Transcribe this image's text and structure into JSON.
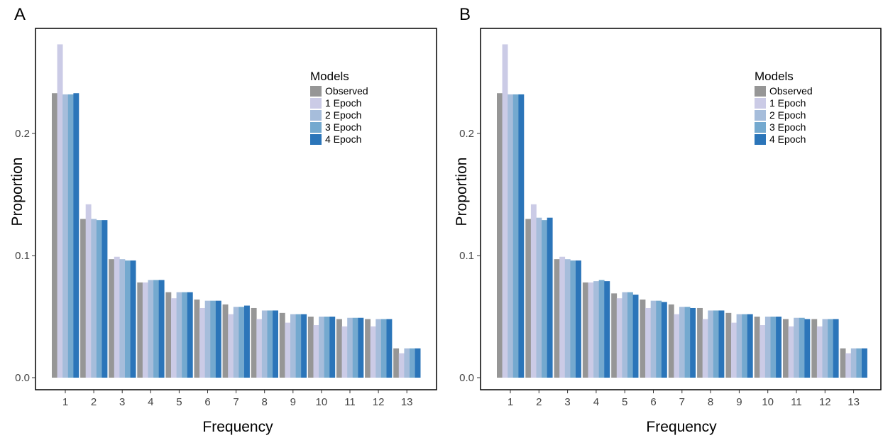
{
  "chart_data": [
    {
      "panel": "A",
      "type": "bar",
      "xlabel": "Frequency",
      "ylabel": "Proportion",
      "ylim": [
        -0.005,
        0.282
      ],
      "yticks": [
        "0.0",
        "0.1",
        "0.2"
      ],
      "categories": [
        "1",
        "2",
        "3",
        "4",
        "5",
        "6",
        "7",
        "8",
        "9",
        "10",
        "11",
        "12",
        "13"
      ],
      "legend": {
        "title": "Models",
        "position": "top-right"
      },
      "grid": false,
      "series": [
        {
          "name": "Observed",
          "color": "#969696",
          "values": [
            0.233,
            0.13,
            0.097,
            0.078,
            0.07,
            0.064,
            0.06,
            0.057,
            0.053,
            0.05,
            0.048,
            0.048,
            0.024
          ]
        },
        {
          "name": "1 Epoch",
          "color": "#cbcbe6",
          "values": [
            0.273,
            0.142,
            0.099,
            0.078,
            0.065,
            0.057,
            0.052,
            0.048,
            0.045,
            0.043,
            0.042,
            0.042,
            0.02
          ]
        },
        {
          "name": "2 Epoch",
          "color": "#a6bddb",
          "values": [
            0.232,
            0.13,
            0.097,
            0.08,
            0.07,
            0.063,
            0.058,
            0.055,
            0.052,
            0.05,
            0.049,
            0.048,
            0.024
          ]
        },
        {
          "name": "3 Epoch",
          "color": "#74a9cf",
          "values": [
            0.232,
            0.129,
            0.096,
            0.08,
            0.07,
            0.063,
            0.058,
            0.055,
            0.052,
            0.05,
            0.049,
            0.048,
            0.024
          ]
        },
        {
          "name": "4 Epoch",
          "color": "#2b75b9",
          "values": [
            0.233,
            0.129,
            0.096,
            0.08,
            0.07,
            0.063,
            0.059,
            0.055,
            0.052,
            0.05,
            0.049,
            0.048,
            0.024
          ]
        }
      ]
    },
    {
      "panel": "B",
      "type": "bar",
      "xlabel": "Frequency",
      "ylabel": "Proportion",
      "ylim": [
        -0.005,
        0.282
      ],
      "yticks": [
        "0.0",
        "0.1",
        "0.2"
      ],
      "categories": [
        "1",
        "2",
        "3",
        "4",
        "5",
        "6",
        "7",
        "8",
        "9",
        "10",
        "11",
        "12",
        "13"
      ],
      "legend": {
        "title": "Models",
        "position": "top-right"
      },
      "grid": false,
      "series": [
        {
          "name": "Observed",
          "color": "#969696",
          "values": [
            0.233,
            0.13,
            0.097,
            0.078,
            0.069,
            0.064,
            0.06,
            0.057,
            0.053,
            0.05,
            0.048,
            0.048,
            0.024
          ]
        },
        {
          "name": "1 Epoch",
          "color": "#cbcbe6",
          "values": [
            0.273,
            0.142,
            0.099,
            0.078,
            0.065,
            0.057,
            0.052,
            0.048,
            0.045,
            0.043,
            0.042,
            0.042,
            0.02
          ]
        },
        {
          "name": "2 Epoch",
          "color": "#a6bddb",
          "values": [
            0.232,
            0.131,
            0.097,
            0.079,
            0.07,
            0.063,
            0.058,
            0.055,
            0.052,
            0.05,
            0.049,
            0.048,
            0.024
          ]
        },
        {
          "name": "3 Epoch",
          "color": "#74a9cf",
          "values": [
            0.232,
            0.129,
            0.096,
            0.08,
            0.07,
            0.063,
            0.058,
            0.055,
            0.052,
            0.05,
            0.049,
            0.048,
            0.024
          ]
        },
        {
          "name": "4 Epoch",
          "color": "#2b75b9",
          "values": [
            0.232,
            0.131,
            0.096,
            0.079,
            0.068,
            0.062,
            0.057,
            0.055,
            0.052,
            0.05,
            0.048,
            0.048,
            0.024
          ]
        }
      ]
    }
  ]
}
